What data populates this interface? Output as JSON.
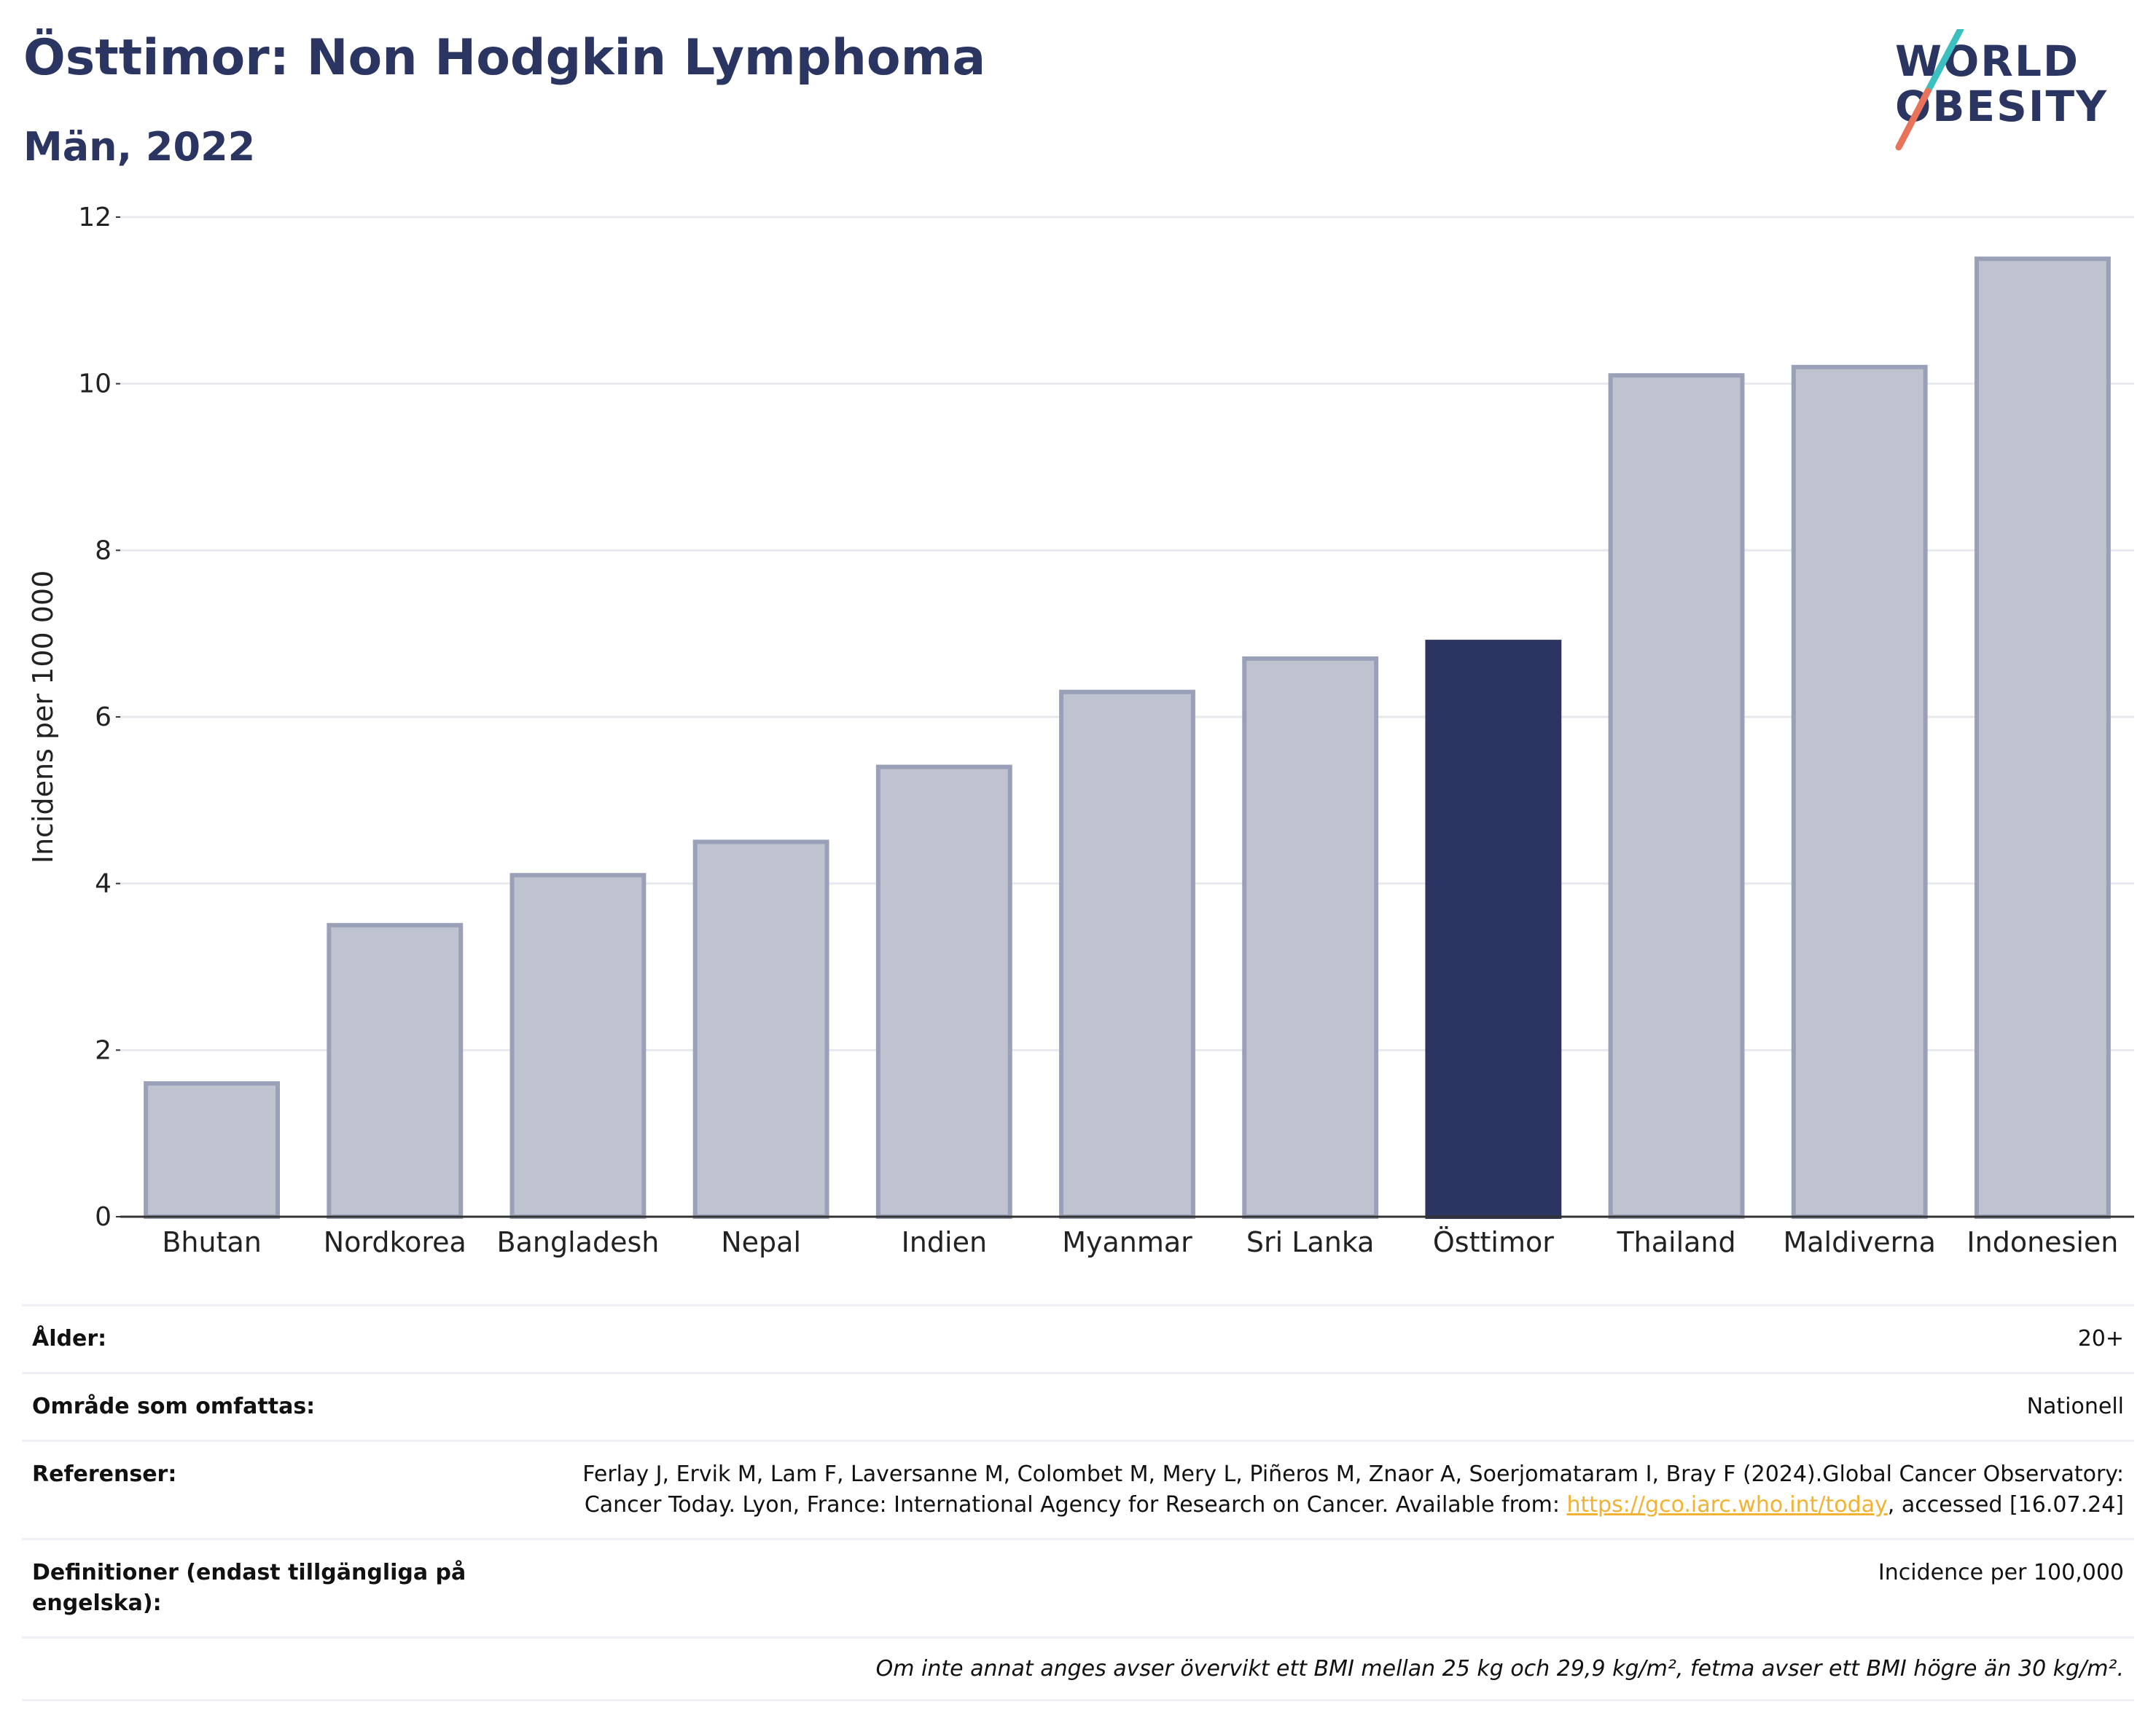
{
  "header": {
    "title": "Östtimor: Non Hodgkin Lymphoma",
    "subtitle": "Män, 2022"
  },
  "logo": {
    "line1": "WORLD",
    "line2": "OBESITY",
    "colors": {
      "text": "#2b3561",
      "slash_top": "#3bbfbf",
      "slash_bottom": "#e8735a"
    }
  },
  "chart_data": {
    "type": "bar",
    "categories": [
      "Bhutan",
      "Nordkorea",
      "Bangladesh",
      "Nepal",
      "Indien",
      "Myanmar",
      "Sri Lanka",
      "Östtimor",
      "Thailand",
      "Maldiverna",
      "Indonesien"
    ],
    "values": [
      1.6,
      3.5,
      4.1,
      4.5,
      5.4,
      6.3,
      6.7,
      6.9,
      10.1,
      10.2,
      11.5
    ],
    "highlight": "Östtimor",
    "ylabel": "Incidens per 100 000",
    "xlabel": "",
    "ylim": [
      0,
      12
    ],
    "yticks": [
      0,
      2,
      4,
      6,
      8,
      10,
      12
    ],
    "grid": true,
    "colors": {
      "bar": "#bfc2cf",
      "bar_edge": "#9aa0b8",
      "highlight": "#2b3561",
      "grid": "#e8e9ee"
    }
  },
  "info": {
    "rows": [
      {
        "label": "Ålder:",
        "value": "20+"
      },
      {
        "label": "Område som omfattas:",
        "value": "Nationell"
      },
      {
        "label": "Referenser:",
        "value_pre": "Ferlay J, Ervik M, Lam F, Laversanne M, Colombet M, Mery L, Piñeros M, Znaor A, Soerjomataram I, Bray F (2024).Global Cancer Observatory: Cancer Today. Lyon, France: International Agency for Research on Cancer. Available from: ",
        "link": "https://gco.iarc.who.int/today",
        "value_post": ", accessed [16.07.24]"
      },
      {
        "label": "Definitioner (endast tillgängliga på engelska):",
        "value": "Incidence per 100,000"
      }
    ],
    "note": "Om inte annat anges avser övervikt ett BMI mellan 25 kg och 29,9 kg/m², fetma avser ett BMI högre än 30 kg/m²."
  }
}
